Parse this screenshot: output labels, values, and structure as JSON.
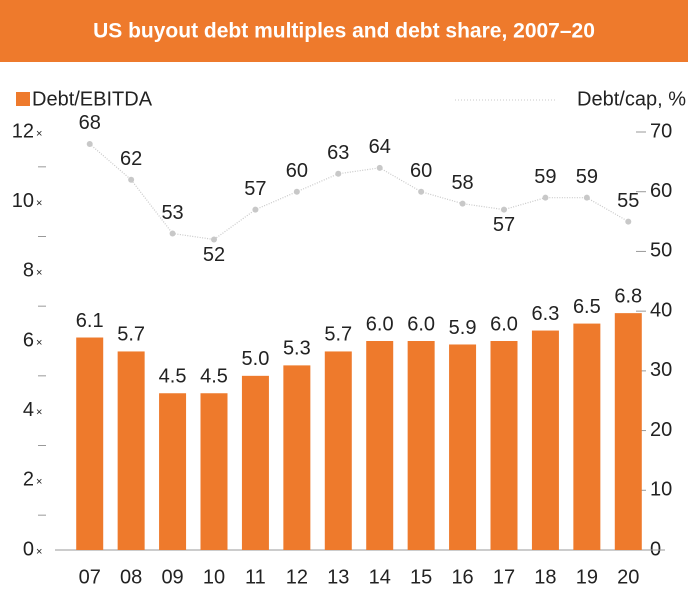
{
  "chart_data": {
    "type": "bar_line",
    "title": "US buyout debt multiples and debt share, 2007–20",
    "categories": [
      "07",
      "08",
      "09",
      "10",
      "11",
      "12",
      "13",
      "14",
      "15",
      "16",
      "17",
      "18",
      "19",
      "20"
    ],
    "series": [
      {
        "name": "Debt/EBITDA",
        "type": "bar",
        "color": "#ee7a2c",
        "values": [
          6.1,
          5.7,
          4.5,
          4.5,
          5.0,
          5.3,
          5.7,
          6.0,
          6.0,
          5.9,
          6.0,
          6.3,
          6.5,
          6.8
        ],
        "value_labels": [
          "6.1",
          "5.7",
          "4.5",
          "4.5",
          "5.0",
          "5.3",
          "5.7",
          "6.0",
          "6.0",
          "5.9",
          "6.0",
          "6.3",
          "6.5",
          "6.8"
        ]
      },
      {
        "name": "Debt/cap, %",
        "type": "line",
        "axis": "y2",
        "color": "#c8c8c8",
        "values": [
          68,
          62,
          53,
          52,
          57,
          60,
          63,
          64,
          60,
          58,
          57,
          59,
          59,
          55
        ]
      }
    ],
    "ylim": [
      0,
      12
    ],
    "yticks": [
      0,
      2,
      4,
      6,
      8,
      10,
      12
    ],
    "y2lim": [
      0,
      70
    ],
    "y2ticks": [
      0,
      10,
      20,
      30,
      40,
      50,
      60,
      70
    ],
    "legend": "top"
  }
}
